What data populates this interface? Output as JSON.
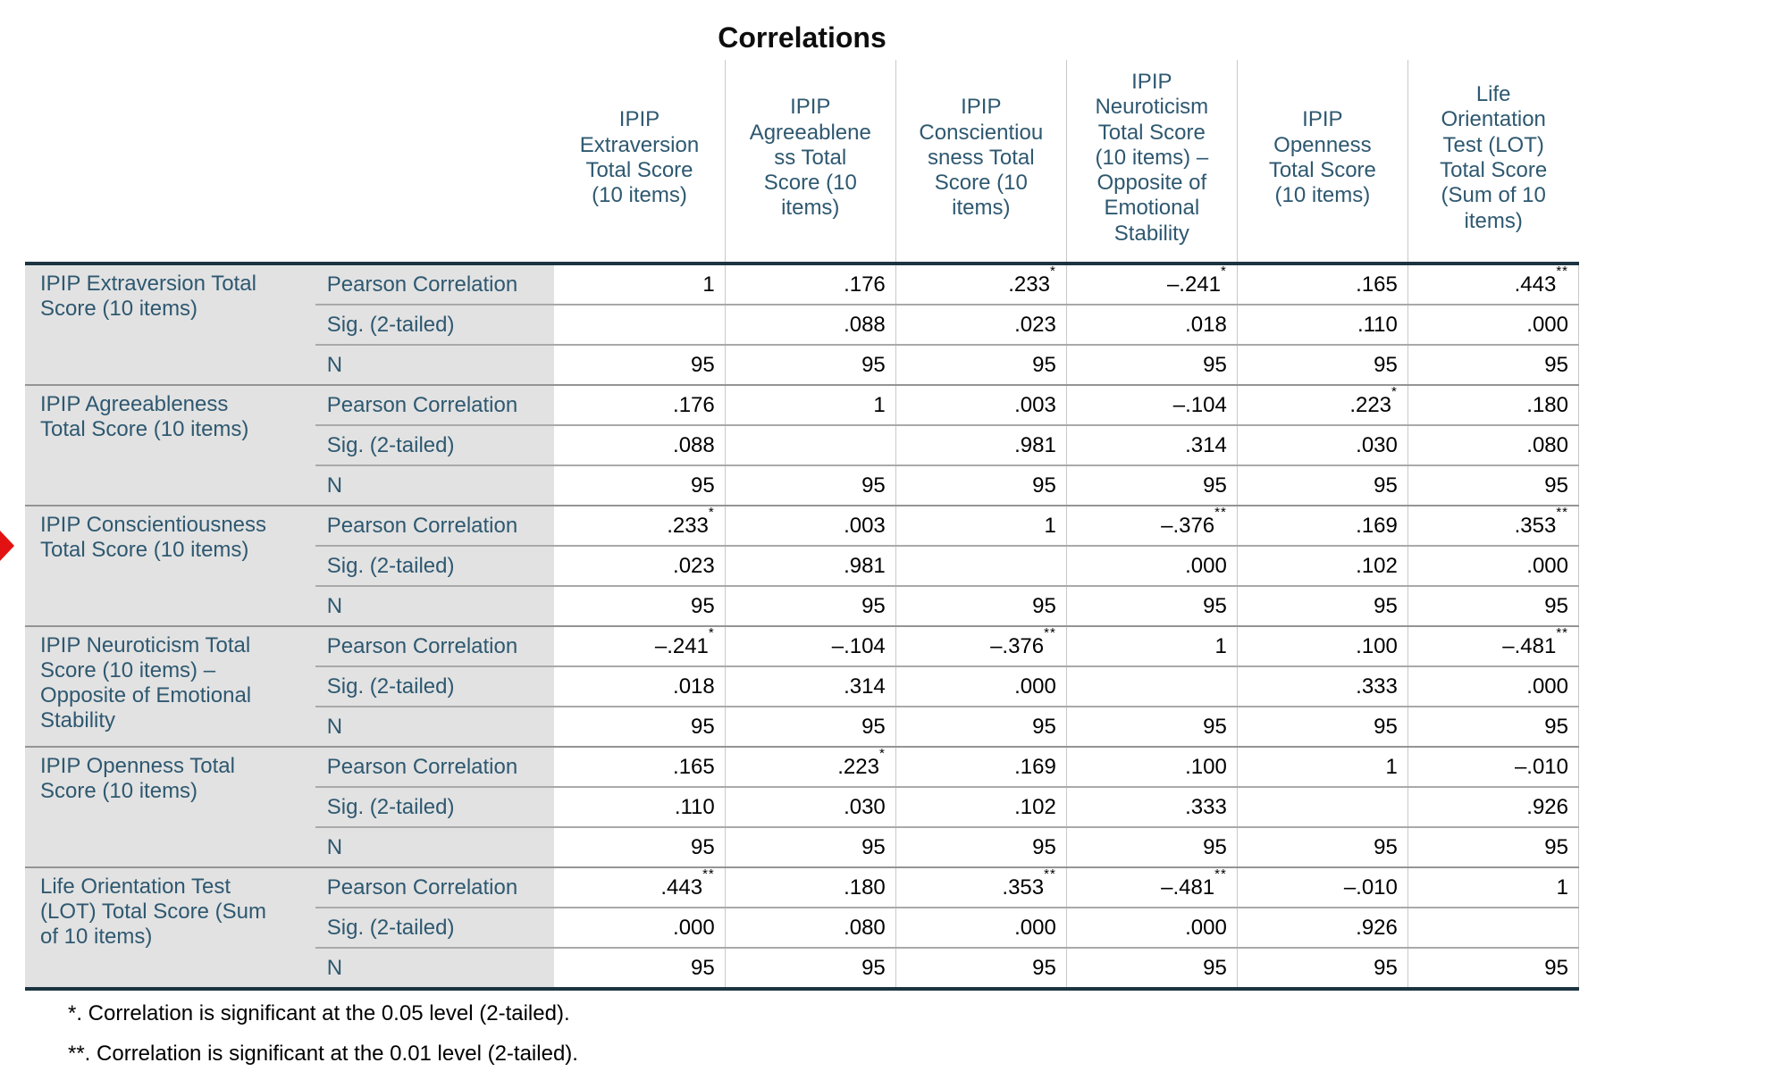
{
  "title": "Correlations",
  "selection_marker": {
    "icon": "red-right-arrow",
    "color": "#e31212"
  },
  "table": {
    "column_headers": [
      "IPIP\nExtraversion\nTotal Score\n(10 items)",
      "IPIP\nAgreeablene\nss Total\nScore (10\nitems)",
      "IPIP\nConscientiou\nsness Total\nScore (10\nitems)",
      "IPIP\nNeuroticism\nTotal Score\n(10 items) –\nOpposite of\nEmotional\nStability",
      "IPIP\nOpenness\nTotal Score\n(10 items)",
      "Life\nOrientation\nTest (LOT)\nTotal Score\n(Sum of 10\nitems)"
    ],
    "stat_labels": [
      "Pearson Correlation",
      "Sig. (2-tailed)",
      "N"
    ],
    "rows": [
      {
        "label": "IPIP Extraversion Total\nScore (10 items)",
        "pearson": [
          "1",
          ".176",
          ".233*",
          "–.241*",
          ".165",
          ".443**"
        ],
        "sig": [
          "",
          ".088",
          ".023",
          ".018",
          ".110",
          ".000"
        ],
        "n": [
          "95",
          "95",
          "95",
          "95",
          "95",
          "95"
        ]
      },
      {
        "label": "IPIP Agreeableness\nTotal Score (10 items)",
        "pearson": [
          ".176",
          "1",
          ".003",
          "–.104",
          ".223*",
          ".180"
        ],
        "sig": [
          ".088",
          "",
          ".981",
          ".314",
          ".030",
          ".080"
        ],
        "n": [
          "95",
          "95",
          "95",
          "95",
          "95",
          "95"
        ]
      },
      {
        "label": "IPIP Conscientiousness\nTotal Score (10 items)",
        "pearson": [
          ".233*",
          ".003",
          "1",
          "–.376**",
          ".169",
          ".353**"
        ],
        "sig": [
          ".023",
          ".981",
          "",
          ".000",
          ".102",
          ".000"
        ],
        "n": [
          "95",
          "95",
          "95",
          "95",
          "95",
          "95"
        ]
      },
      {
        "label": "IPIP Neuroticism Total\nScore (10 items) –\nOpposite of Emotional\nStability",
        "pearson": [
          "–.241*",
          "–.104",
          "–.376**",
          "1",
          ".100",
          "–.481**"
        ],
        "sig": [
          ".018",
          ".314",
          ".000",
          "",
          ".333",
          ".000"
        ],
        "n": [
          "95",
          "95",
          "95",
          "95",
          "95",
          "95"
        ]
      },
      {
        "label": "IPIP Openness Total\nScore (10 items)",
        "pearson": [
          ".165",
          ".223*",
          ".169",
          ".100",
          "1",
          "–.010"
        ],
        "sig": [
          ".110",
          ".030",
          ".102",
          ".333",
          "",
          ".926"
        ],
        "n": [
          "95",
          "95",
          "95",
          "95",
          "95",
          "95"
        ]
      },
      {
        "label": "Life Orientation Test\n(LOT) Total Score (Sum\nof 10 items)",
        "pearson": [
          ".443**",
          ".180",
          ".353**",
          "–.481**",
          "–.010",
          "1"
        ],
        "sig": [
          ".000",
          ".080",
          ".000",
          ".000",
          ".926",
          ""
        ],
        "n": [
          "95",
          "95",
          "95",
          "95",
          "95",
          "95"
        ]
      }
    ],
    "footnotes": [
      "*. Correlation is significant at the 0.05 level (2-tailed).",
      "**. Correlation is significant at the 0.01 level (2-tailed)."
    ]
  },
  "colors": {
    "header_text": "#2e5870",
    "row_header_background": "#e2e2e2",
    "heavy_rule": "#1c3442",
    "light_rule": "#a9a9a9",
    "column_rule": "#c9c9c9",
    "value_text": "#000000",
    "marker_red": "#e31212"
  }
}
